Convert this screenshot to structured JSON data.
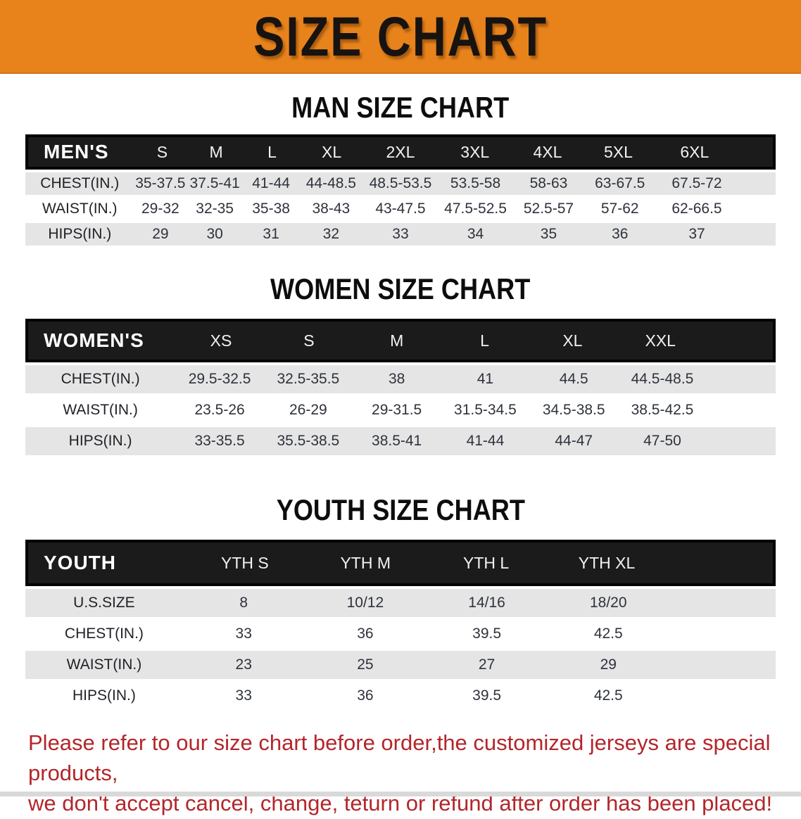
{
  "banner": {
    "title": "SIZE CHART",
    "bg_color": "#e8831c",
    "text_color": "#171310"
  },
  "tables": [
    {
      "id": "men",
      "heading": "MAN SIZE CHART",
      "band_label": "MEN'S",
      "columns": [
        "S",
        "M",
        "L",
        "XL",
        "2XL",
        "3XL",
        "4XL",
        "5XL",
        "6XL"
      ],
      "rows": [
        {
          "label": "CHEST(IN.)",
          "values": [
            "35-37.5",
            "37.5-41",
            "41-44",
            "44-48.5",
            "48.5-53.5",
            "53.5-58",
            "58-63",
            "63-67.5",
            "67.5-72"
          ]
        },
        {
          "label": "WAIST(IN.)",
          "values": [
            "29-32",
            "32-35",
            "35-38",
            "38-43",
            "43-47.5",
            "47.5-52.5",
            "52.5-57",
            "57-62",
            "62-66.5"
          ]
        },
        {
          "label": "HIPS(IN.)",
          "values": [
            "29",
            "30",
            "31",
            "32",
            "33",
            "34",
            "35",
            "36",
            "37"
          ]
        }
      ]
    },
    {
      "id": "women",
      "heading": "WOMEN SIZE CHART",
      "band_label": "WOMEN'S",
      "columns": [
        "XS",
        "S",
        "M",
        "L",
        "XL",
        "XXL"
      ],
      "rows": [
        {
          "label": "CHEST(IN.)",
          "values": [
            "29.5-32.5",
            "32.5-35.5",
            "38",
            "41",
            "44.5",
            "44.5-48.5"
          ]
        },
        {
          "label": "WAIST(IN.)",
          "values": [
            "23.5-26",
            "26-29",
            "29-31.5",
            "31.5-34.5",
            "34.5-38.5",
            "38.5-42.5"
          ]
        },
        {
          "label": "HIPS(IN.)",
          "values": [
            "33-35.5",
            "35.5-38.5",
            "38.5-41",
            "41-44",
            "44-47",
            "47-50"
          ]
        }
      ]
    },
    {
      "id": "youth",
      "heading": "YOUTH SIZE CHART",
      "band_label": "YOUTH",
      "columns": [
        "YTH S",
        "YTH M",
        "YTH L",
        "YTH XL"
      ],
      "rows": [
        {
          "label": "U.S.SIZE",
          "values": [
            "8",
            "10/12",
            "14/16",
            "18/20"
          ]
        },
        {
          "label": "CHEST(IN.)",
          "values": [
            "33",
            "36",
            "39.5",
            "42.5"
          ]
        },
        {
          "label": "WAIST(IN.)",
          "values": [
            "23",
            "25",
            "27",
            "29"
          ]
        },
        {
          "label": "HIPS(IN.)",
          "values": [
            "33",
            "36",
            "39.5",
            "42.5"
          ]
        }
      ]
    }
  ],
  "footer_note": {
    "color": "#b3262b",
    "lines": [
      "Please refer to our size chart before order,the customized jerseys are special products,",
      "we don't accept cancel, change, teturn or refund after order has been placed!"
    ]
  },
  "colors": {
    "banner_orange": "#e8831c",
    "band_black": "#1b1b1b",
    "row_gray": "#e5e5e5",
    "note_red": "#b3262b"
  }
}
